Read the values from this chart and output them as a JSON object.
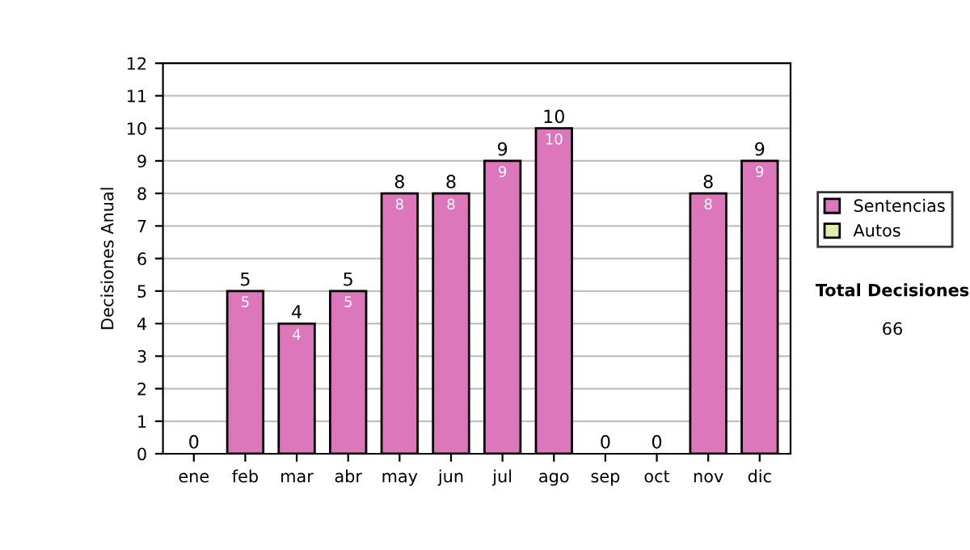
{
  "chart_data": {
    "type": "bar",
    "ylabel": "Decisiones Anual",
    "categories": [
      "ene",
      "feb",
      "mar",
      "abr",
      "may",
      "jun",
      "jul",
      "ago",
      "sep",
      "oct",
      "nov",
      "dic"
    ],
    "stacked": true,
    "series": [
      {
        "name": "Sentencias",
        "color": "#dd77bb",
        "values": [
          0,
          5,
          4,
          5,
          8,
          8,
          9,
          10,
          0,
          0,
          8,
          9
        ],
        "value_labels": [
          null,
          "5",
          "4",
          "5",
          "8",
          "8",
          "9",
          "10",
          null,
          null,
          "8",
          "9"
        ]
      },
      {
        "name": "Autos",
        "color": "#ddeeaa",
        "values": [
          0,
          0,
          0,
          0,
          0,
          0,
          0,
          0,
          0,
          0,
          0,
          0
        ]
      }
    ],
    "totals": [
      "0",
      "5",
      "4",
      "5",
      "8",
      "8",
      "9",
      "10",
      "0",
      "0",
      "8",
      "9"
    ],
    "ylim": [
      0,
      12
    ],
    "yticks": [
      0,
      1,
      2,
      3,
      4,
      5,
      6,
      7,
      8,
      9,
      10,
      11,
      12
    ],
    "grid": "y",
    "legend": "right",
    "annotations": [
      "Total Decisiones",
      "66"
    ]
  }
}
